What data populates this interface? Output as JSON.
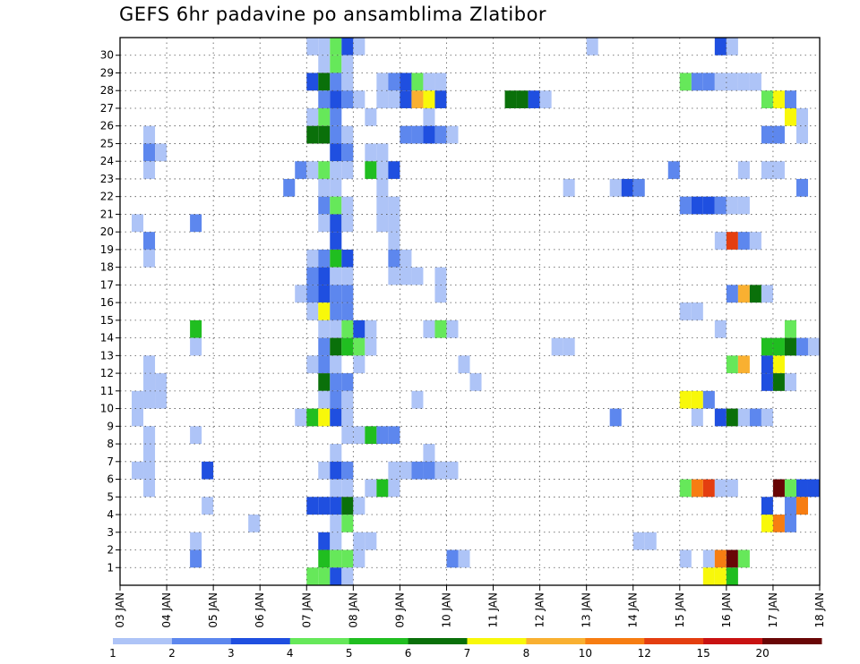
{
  "chart_data": {
    "type": "heatmap",
    "title": "GEFS 6hr padavine po ansamblima Zlatibor",
    "xlabel": "",
    "ylabel": "",
    "x_ticks": [
      "03 JAN",
      "04 JAN",
      "05 JAN",
      "06 JAN",
      "07 JAN",
      "08 JAN",
      "09 JAN",
      "10 JAN",
      "11 JAN",
      "12 JAN",
      "13 JAN",
      "14 JAN",
      "15 JAN",
      "16 JAN",
      "17 JAN",
      "18 JAN"
    ],
    "y_ticks": [
      1,
      2,
      3,
      4,
      5,
      6,
      7,
      8,
      9,
      10,
      11,
      12,
      13,
      14,
      15,
      16,
      17,
      18,
      19,
      20,
      21,
      22,
      23,
      24,
      25,
      26,
      27,
      28,
      29,
      30
    ],
    "xlim": [
      "03 JAN",
      "18 JAN"
    ],
    "ylim": [
      0,
      30
    ],
    "x_step_hours": 6,
    "grid": true,
    "colorbar": {
      "position": "bottom",
      "labels": [
        "1",
        "2",
        "3",
        "4",
        "5",
        "6",
        "7",
        "8",
        "10",
        "12",
        "15",
        "20"
      ],
      "colors": [
        "#aec4f7",
        "#5d87ee",
        "#1f4fe0",
        "#66e85a",
        "#20be20",
        "#0a700a",
        "#f8f80a",
        "#f9b031",
        "#f77d12",
        "#e43e10",
        "#c81212",
        "#690606"
      ]
    },
    "cells": [
      [
        4,
        30,
        1
      ],
      [
        4.25,
        30,
        1
      ],
      [
        4.5,
        30,
        4
      ],
      [
        4.75,
        30,
        3
      ],
      [
        5,
        30,
        1
      ],
      [
        10,
        30,
        1
      ],
      [
        12.75,
        30,
        3
      ],
      [
        13,
        30,
        1
      ],
      [
        4.25,
        29,
        1
      ],
      [
        4.5,
        29,
        4
      ],
      [
        4.75,
        29,
        1
      ],
      [
        4,
        28,
        3
      ],
      [
        4.25,
        28,
        6
      ],
      [
        4.5,
        28,
        2
      ],
      [
        4.75,
        28,
        1
      ],
      [
        5.5,
        28,
        1
      ],
      [
        5.75,
        28,
        2
      ],
      [
        6,
        28,
        3
      ],
      [
        6.25,
        28,
        4
      ],
      [
        6.5,
        28,
        1
      ],
      [
        6.75,
        28,
        1
      ],
      [
        12,
        28,
        4
      ],
      [
        12.25,
        28,
        2
      ],
      [
        12.5,
        28,
        2
      ],
      [
        12.75,
        28,
        1
      ],
      [
        13,
        28,
        1
      ],
      [
        13.25,
        28,
        1
      ],
      [
        13.5,
        28,
        1
      ],
      [
        4.25,
        27,
        2
      ],
      [
        4.5,
        27,
        3
      ],
      [
        4.75,
        27,
        2
      ],
      [
        5,
        27,
        1
      ],
      [
        5.5,
        27,
        1
      ],
      [
        5.75,
        27,
        1
      ],
      [
        6,
        27,
        3
      ],
      [
        6.25,
        27,
        8
      ],
      [
        6.5,
        27,
        7
      ],
      [
        6.75,
        27,
        3
      ],
      [
        8.25,
        27,
        6
      ],
      [
        8.5,
        27,
        6
      ],
      [
        8.75,
        27,
        3
      ],
      [
        9,
        27,
        1
      ],
      [
        13.75,
        27,
        4
      ],
      [
        14,
        27,
        7
      ],
      [
        14.25,
        27,
        2
      ],
      [
        4,
        26,
        1
      ],
      [
        4.25,
        26,
        4
      ],
      [
        4.5,
        26,
        2
      ],
      [
        5.25,
        26,
        1
      ],
      [
        6.5,
        26,
        1
      ],
      [
        14.25,
        26,
        7
      ],
      [
        14.5,
        26,
        1
      ],
      [
        0.5,
        25,
        1
      ],
      [
        4,
        25,
        6
      ],
      [
        4.25,
        25,
        6
      ],
      [
        4.5,
        25,
        2
      ],
      [
        4.75,
        25,
        1
      ],
      [
        6,
        25,
        2
      ],
      [
        6.25,
        25,
        2
      ],
      [
        6.5,
        25,
        3
      ],
      [
        6.75,
        25,
        2
      ],
      [
        7,
        25,
        1
      ],
      [
        13.75,
        25,
        2
      ],
      [
        14,
        25,
        2
      ],
      [
        14.5,
        25,
        1
      ],
      [
        0.5,
        24,
        2
      ],
      [
        0.75,
        24,
        1
      ],
      [
        4.5,
        24,
        3
      ],
      [
        4.75,
        24,
        2
      ],
      [
        5.25,
        24,
        1
      ],
      [
        5.5,
        24,
        1
      ],
      [
        0.5,
        23,
        1
      ],
      [
        3.75,
        23,
        2
      ],
      [
        4,
        23,
        1
      ],
      [
        4.25,
        23,
        4
      ],
      [
        4.5,
        23,
        1
      ],
      [
        4.75,
        23,
        1
      ],
      [
        5.25,
        23,
        5
      ],
      [
        5.5,
        23,
        1
      ],
      [
        5.75,
        23,
        3
      ],
      [
        11.75,
        23,
        2
      ],
      [
        13.25,
        23,
        1
      ],
      [
        13.75,
        23,
        1
      ],
      [
        14,
        23,
        1
      ],
      [
        3.5,
        22,
        2
      ],
      [
        4.25,
        22,
        1
      ],
      [
        4.5,
        22,
        1
      ],
      [
        5.5,
        22,
        1
      ],
      [
        9.5,
        22,
        1
      ],
      [
        10.5,
        22,
        1
      ],
      [
        10.75,
        22,
        3
      ],
      [
        11,
        22,
        2
      ],
      [
        14.5,
        22,
        2
      ],
      [
        4.25,
        21,
        2
      ],
      [
        4.5,
        21,
        4
      ],
      [
        4.75,
        21,
        1
      ],
      [
        5.5,
        21,
        1
      ],
      [
        5.75,
        21,
        1
      ],
      [
        12,
        21,
        2
      ],
      [
        12.25,
        21,
        3
      ],
      [
        12.5,
        21,
        3
      ],
      [
        12.75,
        21,
        2
      ],
      [
        13,
        21,
        1
      ],
      [
        13.25,
        21,
        1
      ],
      [
        0.25,
        20,
        1
      ],
      [
        1.5,
        20,
        2
      ],
      [
        4.25,
        20,
        1
      ],
      [
        4.5,
        20,
        3
      ],
      [
        4.75,
        20,
        1
      ],
      [
        5.5,
        20,
        1
      ],
      [
        5.75,
        20,
        1
      ],
      [
        0.5,
        19,
        2
      ],
      [
        4.5,
        19,
        3
      ],
      [
        5.75,
        19,
        1
      ],
      [
        12.75,
        19,
        1
      ],
      [
        13,
        19,
        10
      ],
      [
        13.25,
        19,
        2
      ],
      [
        13.5,
        19,
        1
      ],
      [
        0.5,
        18,
        1
      ],
      [
        4,
        18,
        1
      ],
      [
        4.25,
        18,
        2
      ],
      [
        4.5,
        18,
        5
      ],
      [
        4.75,
        18,
        3
      ],
      [
        5.75,
        18,
        2
      ],
      [
        6,
        18,
        1
      ],
      [
        4,
        17,
        2
      ],
      [
        4.25,
        17,
        3
      ],
      [
        4.5,
        17,
        1
      ],
      [
        4.75,
        17,
        1
      ],
      [
        5.75,
        17,
        1
      ],
      [
        6,
        17,
        1
      ],
      [
        6.25,
        17,
        1
      ],
      [
        6.75,
        17,
        1
      ],
      [
        3.75,
        16,
        1
      ],
      [
        4,
        16,
        2
      ],
      [
        4.25,
        16,
        3
      ],
      [
        4.5,
        16,
        2
      ],
      [
        4.75,
        16,
        2
      ],
      [
        6.75,
        16,
        1
      ],
      [
        13,
        16,
        2
      ],
      [
        13.25,
        16,
        8
      ],
      [
        13.5,
        16,
        6
      ],
      [
        13.75,
        16,
        1
      ],
      [
        4,
        15,
        1
      ],
      [
        4.25,
        15,
        7
      ],
      [
        4.5,
        15,
        2
      ],
      [
        4.75,
        15,
        2
      ],
      [
        12,
        15,
        1
      ],
      [
        12.25,
        15,
        1
      ],
      [
        1.5,
        14,
        5
      ],
      [
        4.25,
        14,
        1
      ],
      [
        4.5,
        14,
        1
      ],
      [
        4.75,
        14,
        4
      ],
      [
        5,
        14,
        3
      ],
      [
        5.25,
        14,
        1
      ],
      [
        6.5,
        14,
        1
      ],
      [
        6.75,
        14,
        4
      ],
      [
        7,
        14,
        1
      ],
      [
        12.75,
        14,
        1
      ],
      [
        14.25,
        14,
        4
      ],
      [
        1.5,
        13,
        1
      ],
      [
        4.25,
        13,
        2
      ],
      [
        4.5,
        13,
        6
      ],
      [
        4.75,
        13,
        5
      ],
      [
        5,
        13,
        4
      ],
      [
        5.25,
        13,
        1
      ],
      [
        9.25,
        13,
        1
      ],
      [
        9.5,
        13,
        1
      ],
      [
        13.75,
        13,
        5
      ],
      [
        14,
        13,
        5
      ],
      [
        14.25,
        13,
        6
      ],
      [
        14.5,
        13,
        2
      ],
      [
        14.75,
        13,
        1
      ],
      [
        0.5,
        12,
        1
      ],
      [
        4,
        12,
        1
      ],
      [
        4.25,
        12,
        2
      ],
      [
        4.5,
        12,
        1
      ],
      [
        5,
        12,
        1
      ],
      [
        7.25,
        12,
        1
      ],
      [
        13,
        12,
        4
      ],
      [
        13.25,
        12,
        8
      ],
      [
        13.75,
        12,
        3
      ],
      [
        14,
        12,
        7
      ],
      [
        0.5,
        11,
        1
      ],
      [
        0.75,
        11,
        1
      ],
      [
        4.25,
        11,
        6
      ],
      [
        4.5,
        11,
        2
      ],
      [
        4.75,
        11,
        2
      ],
      [
        7.5,
        11,
        1
      ],
      [
        13.75,
        11,
        3
      ],
      [
        14,
        11,
        6
      ],
      [
        14.25,
        11,
        1
      ],
      [
        0.25,
        10,
        1
      ],
      [
        0.5,
        10,
        1
      ],
      [
        0.75,
        10,
        1
      ],
      [
        4.25,
        10,
        1
      ],
      [
        4.5,
        10,
        2
      ],
      [
        4.75,
        10,
        1
      ],
      [
        6.25,
        10,
        1
      ],
      [
        12,
        10,
        7
      ],
      [
        12.25,
        10,
        7
      ],
      [
        12.5,
        10,
        2
      ],
      [
        0.25,
        9,
        1
      ],
      [
        3.75,
        9,
        1
      ],
      [
        4,
        9,
        5
      ],
      [
        4.25,
        9,
        7
      ],
      [
        4.5,
        9,
        3
      ],
      [
        4.75,
        9,
        1
      ],
      [
        10.5,
        9,
        2
      ],
      [
        12.25,
        9,
        1
      ],
      [
        12.75,
        9,
        3
      ],
      [
        13,
        9,
        6
      ],
      [
        13.25,
        9,
        1
      ],
      [
        13.5,
        9,
        2
      ],
      [
        13.75,
        9,
        1
      ],
      [
        0.5,
        8,
        1
      ],
      [
        0.5,
        8,
        1
      ],
      [
        1.5,
        8,
        1
      ],
      [
        4.75,
        8,
        1
      ],
      [
        5,
        8,
        1
      ],
      [
        5.25,
        8,
        5
      ],
      [
        5.5,
        8,
        2
      ],
      [
        5.75,
        8,
        2
      ],
      [
        0.5,
        7,
        1
      ],
      [
        4.5,
        7,
        1
      ],
      [
        6.5,
        7,
        1
      ],
      [
        0.25,
        6,
        1
      ],
      [
        0.5,
        6,
        1
      ],
      [
        1.75,
        6,
        3
      ],
      [
        4.25,
        6,
        1
      ],
      [
        4.5,
        6,
        3
      ],
      [
        4.75,
        6,
        2
      ],
      [
        5.75,
        6,
        1
      ],
      [
        6,
        6,
        1
      ],
      [
        6.25,
        6,
        2
      ],
      [
        6.5,
        6,
        2
      ],
      [
        6.75,
        6,
        1
      ],
      [
        7,
        6,
        1
      ],
      [
        0.5,
        5,
        1
      ],
      [
        4.5,
        5,
        1
      ],
      [
        4.75,
        5,
        1
      ],
      [
        5.25,
        5,
        1
      ],
      [
        5.5,
        5,
        5
      ],
      [
        5.75,
        5,
        1
      ],
      [
        12,
        5,
        4
      ],
      [
        12.25,
        5,
        9
      ],
      [
        12.5,
        5,
        10
      ],
      [
        12.75,
        5,
        1
      ],
      [
        13,
        5,
        1
      ],
      [
        14,
        5,
        12
      ],
      [
        14.25,
        5,
        4
      ],
      [
        14.5,
        5,
        3
      ],
      [
        14.75,
        5,
        3
      ],
      [
        1.75,
        4,
        1
      ],
      [
        4,
        4,
        3
      ],
      [
        4.25,
        4,
        3
      ],
      [
        4.5,
        4,
        3
      ],
      [
        4.75,
        4,
        6
      ],
      [
        5,
        4,
        1
      ],
      [
        13.75,
        4,
        3
      ],
      [
        14.25,
        4,
        2
      ],
      [
        14.5,
        4,
        9
      ],
      [
        2.75,
        3,
        1
      ],
      [
        4.5,
        3,
        1
      ],
      [
        4.75,
        3,
        4
      ],
      [
        13.75,
        3,
        7
      ],
      [
        14,
        3,
        9
      ],
      [
        14.25,
        3,
        2
      ],
      [
        1.5,
        2,
        1
      ],
      [
        4.25,
        2,
        3
      ],
      [
        4.5,
        2,
        1
      ],
      [
        5,
        2,
        1
      ],
      [
        5.25,
        2,
        1
      ],
      [
        11,
        2,
        1
      ],
      [
        11.25,
        2,
        1
      ],
      [
        1.5,
        1,
        2
      ],
      [
        4.25,
        1,
        5
      ],
      [
        4.5,
        1,
        4
      ],
      [
        4.75,
        1,
        4
      ],
      [
        5,
        1,
        1
      ],
      [
        7,
        1,
        2
      ],
      [
        7.25,
        1,
        1
      ],
      [
        12,
        1,
        1
      ],
      [
        12.5,
        1,
        1
      ],
      [
        12.75,
        1,
        9
      ],
      [
        13,
        1,
        12
      ],
      [
        13.25,
        1,
        4
      ],
      [
        4,
        0,
        4
      ],
      [
        4.25,
        0,
        4
      ],
      [
        4.5,
        0,
        3
      ],
      [
        4.75,
        0,
        1
      ],
      [
        12.5,
        0,
        7
      ],
      [
        12.75,
        0,
        7
      ],
      [
        13,
        0,
        5
      ]
    ]
  }
}
